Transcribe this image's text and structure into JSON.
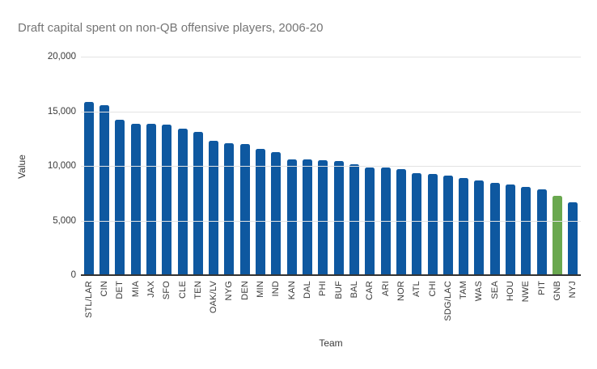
{
  "chart_data": {
    "type": "bar",
    "title": "Draft capital spent on non-QB offensive players, 2006-20",
    "xlabel": "Team",
    "ylabel": "Value",
    "ylim": [
      0,
      20000
    ],
    "yticks": [
      0,
      5000,
      10000,
      15000,
      20000
    ],
    "ytick_labels": [
      "0",
      "5,000",
      "10,000",
      "15,000",
      "20,000"
    ],
    "grid": "horizontal",
    "legend": "none",
    "sort_order": "descending",
    "highlight_category": "GNB",
    "categories": [
      "STL/LAR",
      "CIN",
      "DET",
      "MIA",
      "JAX",
      "SFO",
      "CLE",
      "TEN",
      "OAK/LV",
      "NYG",
      "DEN",
      "MIN",
      "IND",
      "KAN",
      "DAL",
      "PHI",
      "BUF",
      "BAL",
      "CAR",
      "ARI",
      "NOR",
      "ATL",
      "CHI",
      "SDG/LAC",
      "TAM",
      "WAS",
      "SEA",
      "HOU",
      "NWE",
      "PIT",
      "GNB",
      "NYJ"
    ],
    "values": [
      15900,
      15600,
      14300,
      13950,
      13950,
      13850,
      13500,
      13150,
      12400,
      12150,
      12050,
      11650,
      11350,
      10700,
      10650,
      10600,
      10500,
      10250,
      9950,
      9900,
      9800,
      9400,
      9300,
      9200,
      8950,
      8750,
      8550,
      8400,
      8150,
      7950,
      7350,
      6750
    ]
  },
  "colors": {
    "background": "#ffffff",
    "bar_default": "#0e58a0",
    "bar_highlight": "#6aa84f",
    "gridline": "#e3e3e3",
    "axis_line": "#333333",
    "title_text": "#757575",
    "tick_text": "#3a3a3a",
    "axis_title_text": "#3a3a3a"
  }
}
